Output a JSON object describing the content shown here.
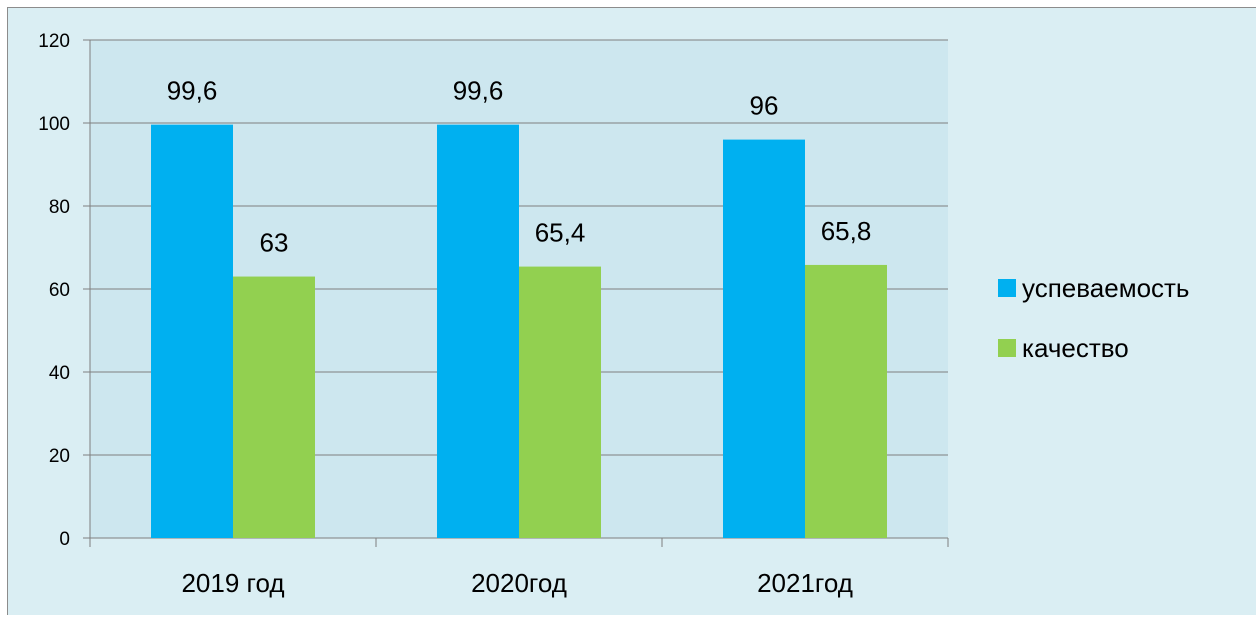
{
  "chart_data": {
    "type": "bar",
    "categories": [
      "2019 год",
      "2020год",
      "2021год"
    ],
    "series": [
      {
        "name": "успеваемость",
        "values": [
          99.6,
          99.6,
          96
        ],
        "labels": [
          "99,6",
          "99,6",
          "96"
        ],
        "color": "#00b0f0"
      },
      {
        "name": "качество",
        "values": [
          63,
          65.4,
          65.8
        ],
        "labels": [
          "63",
          "65,4",
          "65,8"
        ],
        "color": "#92d050"
      }
    ],
    "ylim": [
      0,
      120
    ],
    "yticks": [
      0,
      20,
      40,
      60,
      80,
      100,
      120
    ],
    "grid": true,
    "legend": "right",
    "plot_background": "#cde7ef",
    "chart_background": "#daeef3"
  }
}
